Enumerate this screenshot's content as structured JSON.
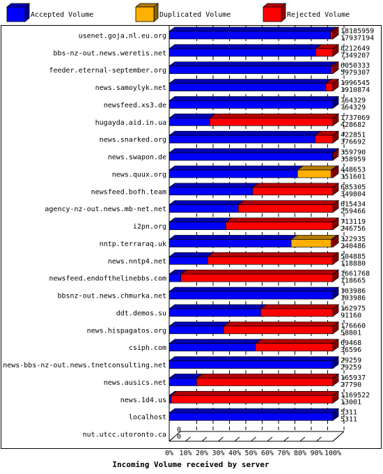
{
  "chart_data": {
    "type": "bar",
    "orientation": "horizontal",
    "xlabel": "Incoming Volume received by server",
    "x_ticks": [
      "0%",
      "10%",
      "20%",
      "30%",
      "40%",
      "50%",
      "60%",
      "70%",
      "80%",
      "90%",
      "100%"
    ],
    "legend": [
      {
        "name": "Accepted Volume",
        "color": "#0000ff"
      },
      {
        "name": "Duplicated Volume",
        "color": "#ffb000"
      },
      {
        "name": "Rejected Volume",
        "color": "#ff0000"
      }
    ],
    "legend_position": "top",
    "grid": true,
    "servers": [
      {
        "name": "usenet.goja.nl.eu.org",
        "total": "18185959",
        "accepted": "17937194",
        "accepted_pct": 98.6,
        "duplicated_pct": 0,
        "rejected_pct": 1.4
      },
      {
        "name": "bbs-nz-out.news.weretis.net",
        "total": "8212649",
        "accepted": "7349207",
        "accepted_pct": 89.5,
        "duplicated_pct": 0,
        "rejected_pct": 10.5
      },
      {
        "name": "feeder.eternal-september.org",
        "total": "6050333",
        "accepted": "5979307",
        "accepted_pct": 98.8,
        "duplicated_pct": 0,
        "rejected_pct": 1.2
      },
      {
        "name": "news.samoylyk.net",
        "total": "1996545",
        "accepted": "1910874",
        "accepted_pct": 95.7,
        "duplicated_pct": 0,
        "rejected_pct": 4.3
      },
      {
        "name": "newsfeed.xs3.de",
        "total": "764329",
        "accepted": "764329",
        "accepted_pct": 100,
        "duplicated_pct": 0,
        "rejected_pct": 0
      },
      {
        "name": "hugayda.aid.in.ua",
        "total": "1737069",
        "accepted": "428682",
        "accepted_pct": 24.7,
        "duplicated_pct": 0,
        "rejected_pct": 75.3
      },
      {
        "name": "news.snarked.org",
        "total": "422851",
        "accepted": "376692",
        "accepted_pct": 89.1,
        "duplicated_pct": 0,
        "rejected_pct": 10.9
      },
      {
        "name": "news.swapon.de",
        "total": "359790",
        "accepted": "358959",
        "accepted_pct": 99.8,
        "duplicated_pct": 0,
        "rejected_pct": 0.2
      },
      {
        "name": "news.quux.org",
        "total": "448653",
        "accepted": "351601",
        "accepted_pct": 78.4,
        "duplicated_pct": 20.5,
        "rejected_pct": 1.1
      },
      {
        "name": "newsfeed.bofh.team",
        "total": "685305",
        "accepted": "349804",
        "accepted_pct": 51.0,
        "duplicated_pct": 0,
        "rejected_pct": 49.0
      },
      {
        "name": "agency-nz-out.news.mb-net.net",
        "total": "615434",
        "accepted": "259466",
        "accepted_pct": 42.2,
        "duplicated_pct": 0,
        "rejected_pct": 57.8
      },
      {
        "name": "i2pn.org",
        "total": "713119",
        "accepted": "246756",
        "accepted_pct": 34.6,
        "duplicated_pct": 0,
        "rejected_pct": 65.4
      },
      {
        "name": "nntp.terraraq.uk",
        "total": "322935",
        "accepted": "240486",
        "accepted_pct": 74.5,
        "duplicated_pct": 24.5,
        "rejected_pct": 1.0
      },
      {
        "name": "news.nntp4.net",
        "total": "504885",
        "accepted": "118880",
        "accepted_pct": 23.5,
        "duplicated_pct": 0,
        "rejected_pct": 76.5
      },
      {
        "name": "newsfeed.endofthelinebbs.com",
        "total": "1661768",
        "accepted": "118665",
        "accepted_pct": 7.1,
        "duplicated_pct": 0,
        "rejected_pct": 92.9
      },
      {
        "name": "bbsnz-out.news.chmurka.net",
        "total": "103986",
        "accepted": "103986",
        "accepted_pct": 100,
        "duplicated_pct": 0,
        "rejected_pct": 0
      },
      {
        "name": "ddt.demos.su",
        "total": "162975",
        "accepted": "91160",
        "accepted_pct": 55.9,
        "duplicated_pct": 0,
        "rejected_pct": 44.1
      },
      {
        "name": "news.hispagatos.org",
        "total": "176660",
        "accepted": "58801",
        "accepted_pct": 33.3,
        "duplicated_pct": 0,
        "rejected_pct": 66.7
      },
      {
        "name": "csiph.com",
        "total": "69468",
        "accepted": "36596",
        "accepted_pct": 52.7,
        "duplicated_pct": 0,
        "rejected_pct": 47.3
      },
      {
        "name": "news-bbs-nz-out.news.tnetconsulting.net",
        "total": "29259",
        "accepted": "29259",
        "accepted_pct": 100,
        "duplicated_pct": 0,
        "rejected_pct": 0
      },
      {
        "name": "news.ausics.net",
        "total": "165937",
        "accepted": "27790",
        "accepted_pct": 16.7,
        "duplicated_pct": 0,
        "rejected_pct": 83.3
      },
      {
        "name": "news.1d4.us",
        "total": "1169522",
        "accepted": "13001",
        "accepted_pct": 1.1,
        "duplicated_pct": 0,
        "rejected_pct": 98.9
      },
      {
        "name": "localhost",
        "total": "5311",
        "accepted": "5311",
        "accepted_pct": 100,
        "duplicated_pct": 0,
        "rejected_pct": 0
      },
      {
        "name": "nut.utcc.utoronto.ca",
        "total": "0",
        "accepted": "0",
        "accepted_pct": 0,
        "duplicated_pct": 0,
        "rejected_pct": 0
      }
    ]
  }
}
